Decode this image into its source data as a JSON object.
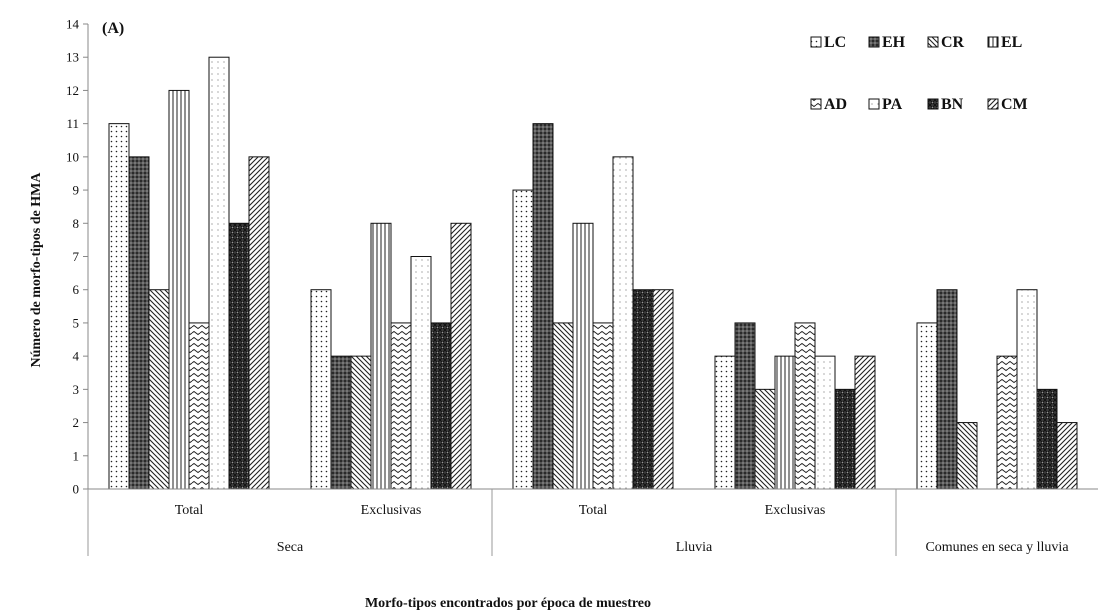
{
  "chart_data": {
    "type": "bar",
    "panel_label": "(A)",
    "xlabel": "Morfo-tipos encontrados por época de muestreo",
    "ylabel": "Número de morfo-tipos de HMA",
    "ylim": [
      0,
      14
    ],
    "yticks": [
      0,
      1,
      2,
      3,
      4,
      5,
      6,
      7,
      8,
      9,
      10,
      11,
      12,
      13,
      14
    ],
    "grid": false,
    "legend_position": "top-right",
    "categories": [
      "Total",
      "Exclusivas",
      "Total",
      "Exclusivas",
      "Comunes en seca y lluvia"
    ],
    "groups": [
      {
        "label": "Seca",
        "categories": [
          "Total",
          "Exclusivas"
        ]
      },
      {
        "label": "Lluvia",
        "categories": [
          "Total",
          "Exclusivas"
        ]
      },
      {
        "label": "",
        "categories": [
          "Comunes en seca y lluvia"
        ]
      }
    ],
    "series": [
      {
        "name": "LC",
        "pattern": "dots",
        "values": [
          11,
          6,
          9,
          4,
          5
        ]
      },
      {
        "name": "EH",
        "pattern": "dark-grid",
        "values": [
          10,
          4,
          11,
          5,
          6
        ]
      },
      {
        "name": "CR",
        "pattern": "diagonal-down",
        "values": [
          6,
          4,
          5,
          3,
          2
        ]
      },
      {
        "name": "EL",
        "pattern": "vertical-lines",
        "values": [
          12,
          8,
          8,
          4,
          0
        ]
      },
      {
        "name": "AD",
        "pattern": "wave",
        "values": [
          5,
          5,
          5,
          5,
          4
        ]
      },
      {
        "name": "PA",
        "pattern": "sparse-dots",
        "values": [
          13,
          7,
          10,
          4,
          6
        ]
      },
      {
        "name": "BN",
        "pattern": "dark-checker",
        "values": [
          8,
          5,
          6,
          3,
          3
        ]
      },
      {
        "name": "CM",
        "pattern": "diagonal-up",
        "values": [
          10,
          8,
          6,
          4,
          2
        ]
      }
    ],
    "colors": {
      "bar_fill": "#ffffff",
      "ink": "#111111",
      "axis": "#888888"
    }
  }
}
